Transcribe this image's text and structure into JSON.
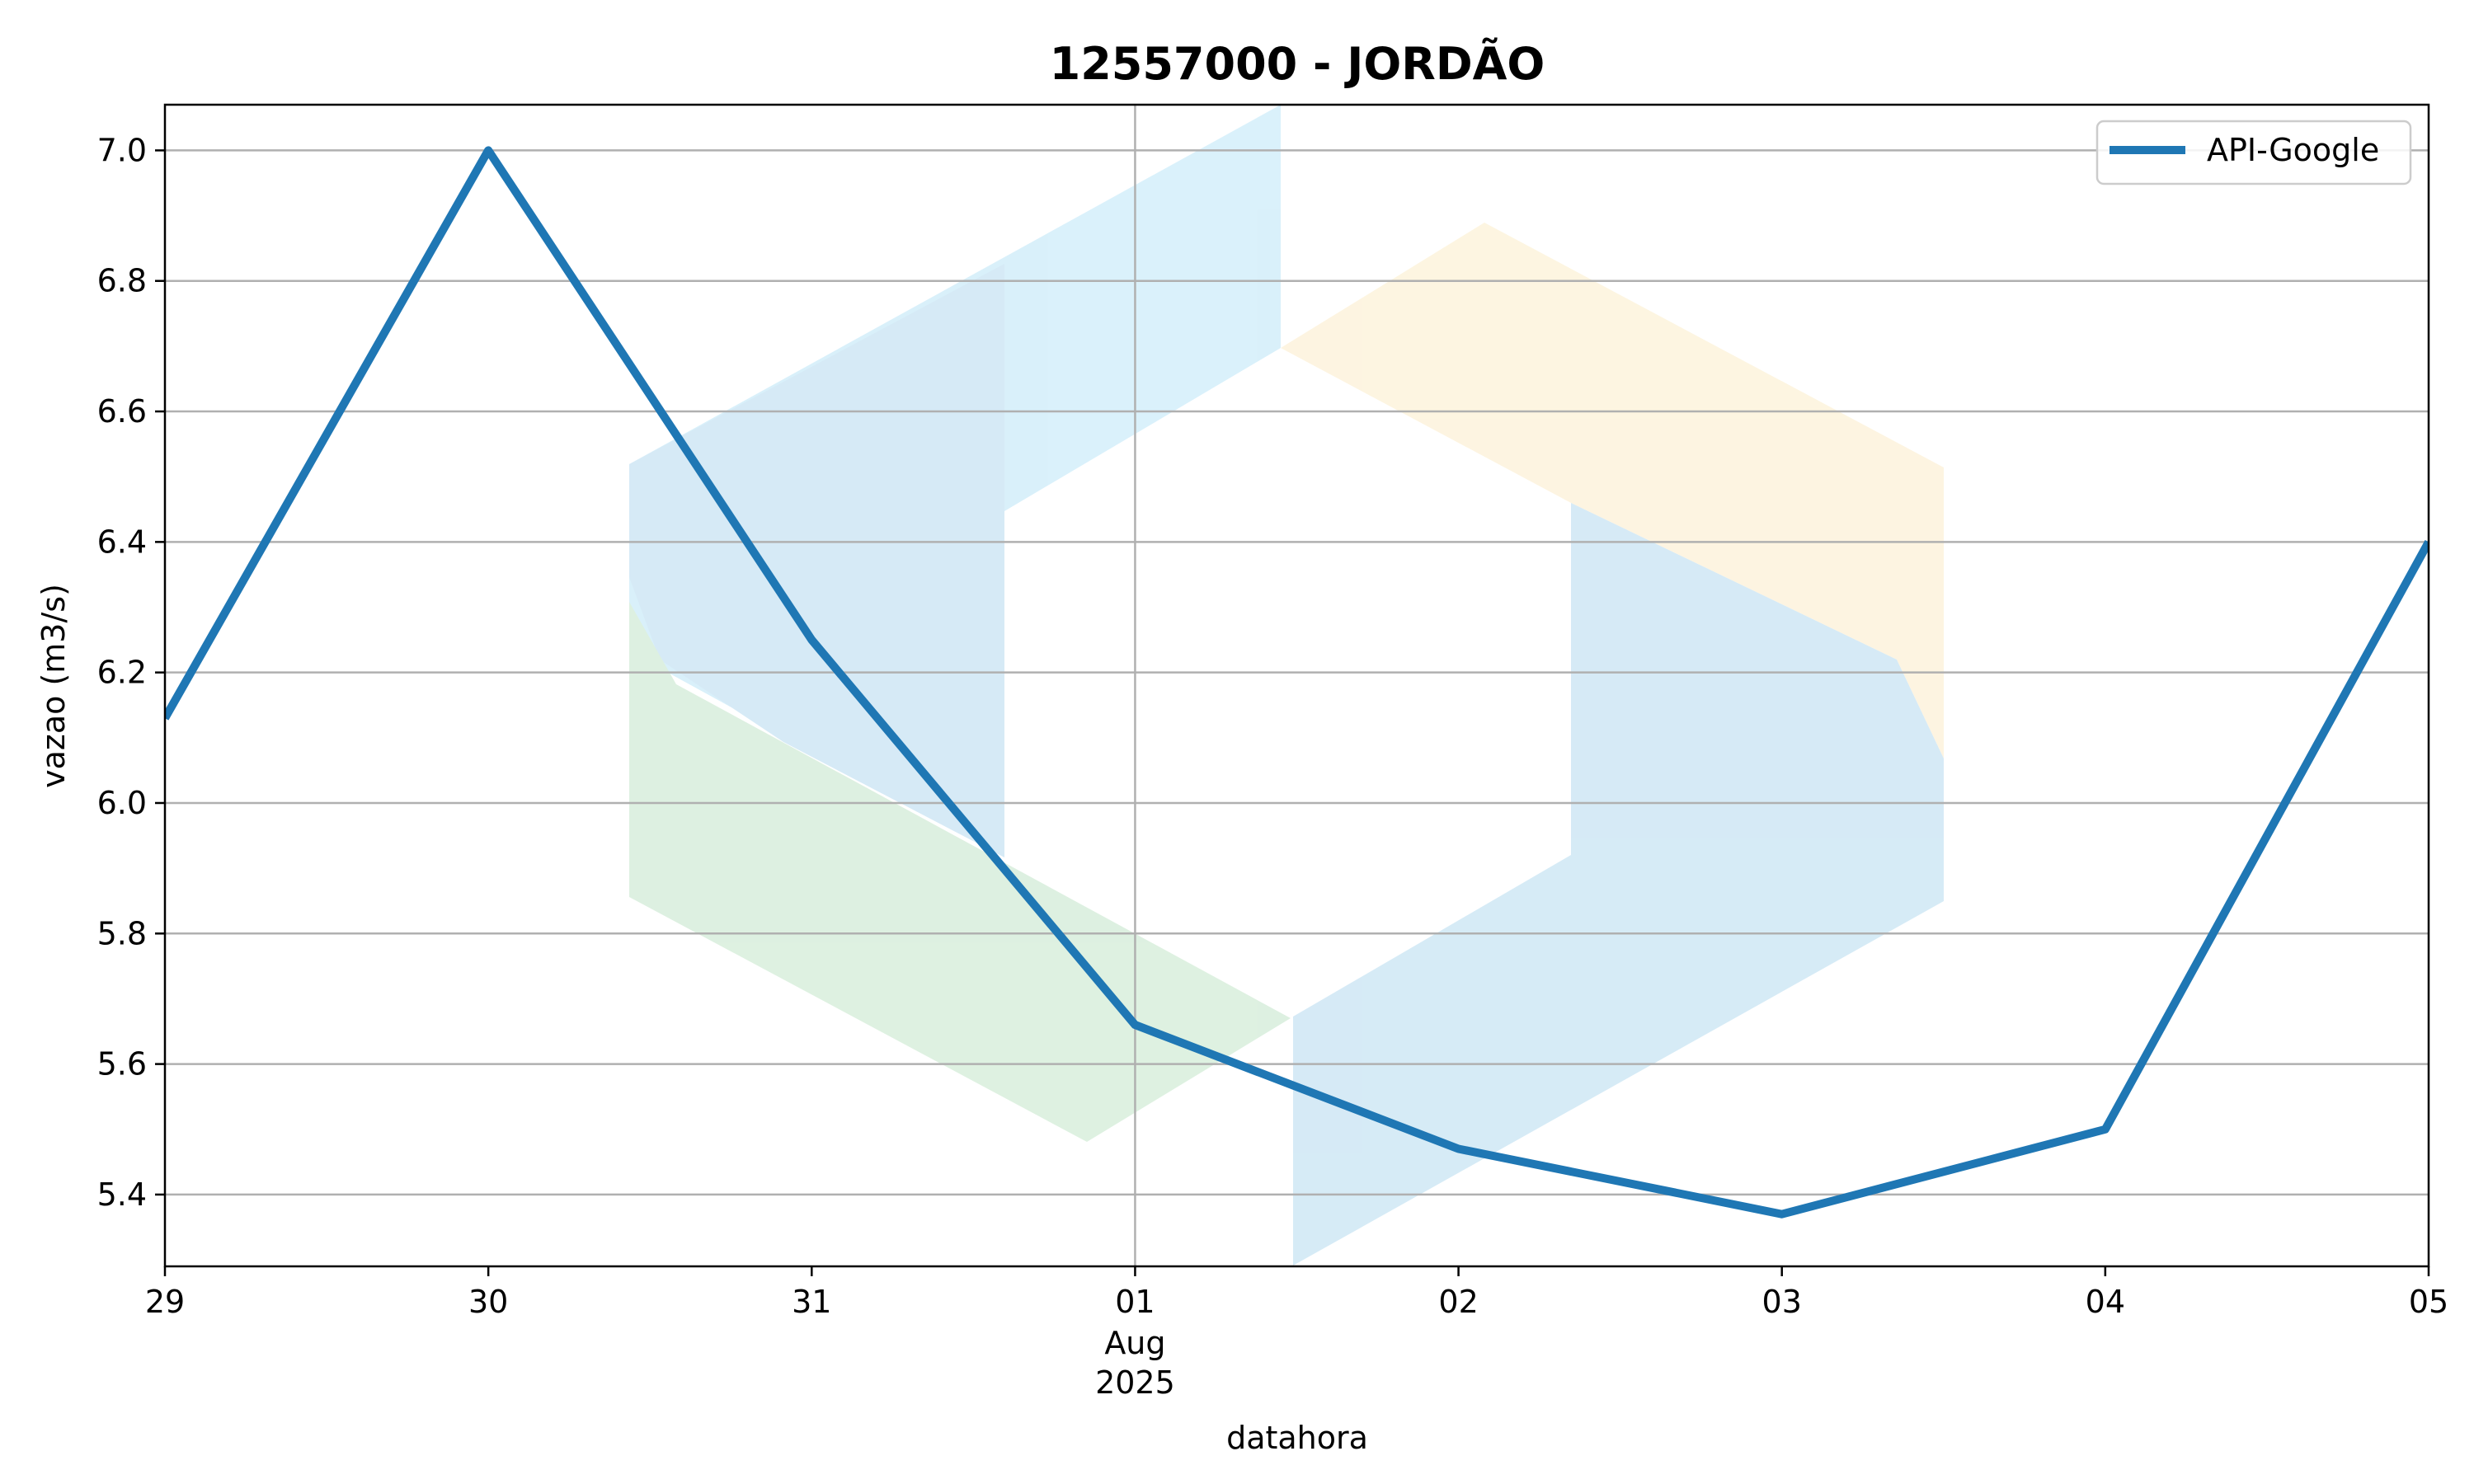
{
  "chart_data": {
    "type": "line",
    "title": "12557000 - JORDÃO",
    "xlabel": "datahora",
    "ylabel": "vazao (m3/s)",
    "x": [
      "2025-07-29",
      "2025-07-30",
      "2025-07-31",
      "2025-08-01",
      "2025-08-02",
      "2025-08-03",
      "2025-08-04",
      "2025-08-05"
    ],
    "x_tick_labels": [
      "29",
      "30",
      "31",
      "01",
      "02",
      "03",
      "04",
      "05"
    ],
    "x_tick_sublabels": {
      "01": [
        "Aug",
        "2025"
      ]
    },
    "xlim": [
      "2025-07-29",
      "2025-08-05"
    ],
    "ylim": [
      5.29,
      7.07
    ],
    "y_ticks": [
      5.4,
      5.6,
      5.8,
      6.0,
      6.2,
      6.4,
      6.6,
      6.8,
      7.0
    ],
    "series": [
      {
        "name": "API-Google",
        "color": "#1f77b4",
        "values": [
          6.13,
          7.0,
          6.25,
          5.66,
          5.47,
          5.37,
          5.5,
          6.4
        ]
      }
    ],
    "grid": {
      "horizontal": true,
      "vertical": "major-month-tick-only"
    },
    "legend": "top-right",
    "watermark_colors": {
      "blue": "#cfe7f5",
      "light_blue": "#d3eefa",
      "green": "#d8eedc",
      "yellow": "#fdf3dc"
    }
  }
}
